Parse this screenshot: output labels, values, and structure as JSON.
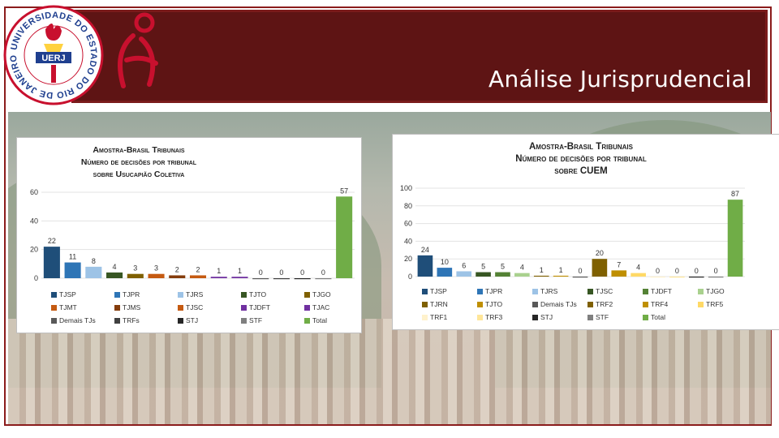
{
  "header": {
    "title": "Análise Jurisprudencial"
  },
  "logo": {
    "text_top": "UNIVERSIDADE DO ESTADO DO RIO DE JANEIRO",
    "acronym": "UERJ"
  },
  "colors": {
    "banner": "#5e1414",
    "accent": "#c8102e"
  },
  "chart_data": [
    {
      "type": "bar",
      "title_lines": [
        "Amostra-Brasil Tribunais",
        "Número de decisões por tribunal",
        "sobre Usucapião Coletiva"
      ],
      "categories": [
        "TJSP",
        "TJPR",
        "TJRS",
        "TJTO",
        "TJGO",
        "TJMT",
        "TJMS",
        "TJSC",
        "TJDFT",
        "TJAC",
        "Demais TJs",
        "TRFs",
        "STJ",
        "STF",
        "Total"
      ],
      "values": [
        22,
        11,
        8,
        4,
        3,
        3,
        2,
        2,
        1,
        1,
        0,
        0,
        0,
        0,
        57
      ],
      "colors": [
        "#1f4e79",
        "#2e75b6",
        "#9dc3e6",
        "#375623",
        "#7f6000",
        "#c55a11",
        "#843c0c",
        "#c55a11",
        "#7030a0",
        "#7030a0",
        "#595959",
        "#404040",
        "#262626",
        "#7f7f7f",
        "#70ad47"
      ],
      "y_ticks": [
        "0",
        "20",
        "40",
        "60"
      ],
      "ylim": [
        0,
        60
      ]
    },
    {
      "type": "bar",
      "title_lines": [
        "Amostra-Brasil Tribunais",
        "Número de decisões por tribunal",
        "sobre CUEM"
      ],
      "categories": [
        "TJSP",
        "TJPR",
        "TJRS",
        "TJSC",
        "TJDFT",
        "TJGO",
        "TJRN",
        "TJTO",
        "Demais TJs",
        "TRF2",
        "TRF4",
        "TRF5",
        "TRF1",
        "TRF3",
        "STJ",
        "STF",
        "Total"
      ],
      "values": [
        24,
        10,
        6,
        5,
        5,
        4,
        1,
        1,
        0,
        20,
        7,
        4,
        0,
        0,
        0,
        0,
        87
      ],
      "colors": [
        "#1f4e79",
        "#2e75b6",
        "#9dc3e6",
        "#375623",
        "#548235",
        "#a9d18e",
        "#7f6000",
        "#bf8f00",
        "#595959",
        "#7f6000",
        "#bf8f00",
        "#ffd966",
        "#fff2cc",
        "#ffe699",
        "#262626",
        "#7f7f7f",
        "#70ad47"
      ],
      "y_ticks": [
        "0",
        "20",
        "40",
        "60",
        "80",
        "100"
      ],
      "ylim": [
        0,
        100
      ]
    }
  ]
}
